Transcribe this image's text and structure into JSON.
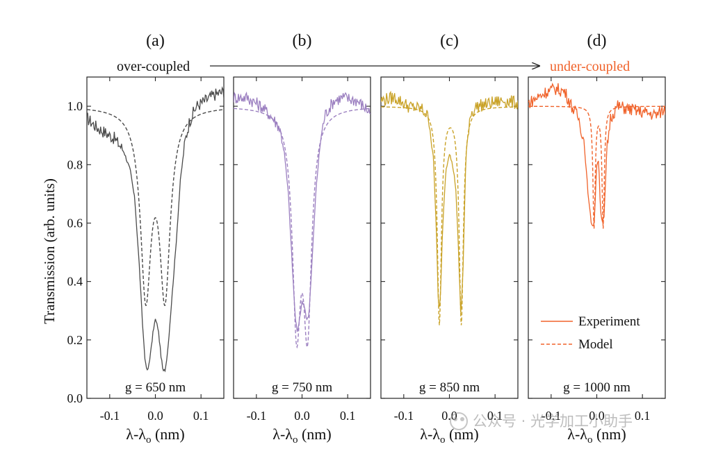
{
  "figure": {
    "ylabel": "Transmission (arb. units)",
    "xlabel_main": "λ-λ",
    "xlabel_sub": "o",
    "xlabel_unit": " (nm)",
    "arrow_left_label": "over-coupled",
    "arrow_right_label": "under-coupled",
    "legend": [
      {
        "label": "Experiment",
        "style": "solid"
      },
      {
        "label": "Model",
        "style": "dashed"
      }
    ],
    "watermark": "公众号 · 光学加工小助手",
    "arrow_color": "#222222",
    "highlight_color": "#f0622a"
  },
  "chart_data": [
    {
      "type": "line",
      "panel_label": "(a)",
      "annotation": "g = 650 nm",
      "color": "#4a4a4a",
      "xlim": [
        -0.15,
        0.15
      ],
      "ylim": [
        0.0,
        1.1
      ],
      "xticks": [
        -0.1,
        0.0,
        0.1
      ],
      "xticklabels": [
        "-0.1",
        "0.0",
        "0.1"
      ],
      "yticks": [
        0.0,
        0.2,
        0.4,
        0.6,
        0.8,
        1.0
      ],
      "yticklabels": [
        "0.0",
        "0.2",
        "0.4",
        "0.6",
        "0.8",
        "1.0"
      ],
      "model": {
        "base": 1.0,
        "dips": [
          {
            "x0": -0.021,
            "gamma": 0.028,
            "depth": 0.62
          },
          {
            "x0": 0.021,
            "gamma": 0.028,
            "depth": 0.62
          }
        ]
      },
      "series": [
        {
          "name": "Experiment",
          "dash": "solid",
          "x": [
            -0.15,
            -0.13,
            -0.11,
            -0.09,
            -0.07,
            -0.055,
            -0.045,
            -0.035,
            -0.028,
            -0.022,
            -0.017,
            -0.01,
            -0.004,
            0.0,
            0.006,
            0.012,
            0.017,
            0.022,
            0.028,
            0.035,
            0.045,
            0.055,
            0.065,
            0.075,
            0.09,
            0.11,
            0.13,
            0.15
          ],
          "y": [
            0.96,
            0.93,
            0.91,
            0.89,
            0.85,
            0.78,
            0.68,
            0.45,
            0.25,
            0.12,
            0.09,
            0.16,
            0.24,
            0.27,
            0.24,
            0.15,
            0.09,
            0.1,
            0.18,
            0.32,
            0.52,
            0.75,
            0.88,
            0.95,
            1.0,
            1.02,
            1.04,
            1.05
          ]
        },
        {
          "name": "Model",
          "dash": "dashed"
        }
      ]
    },
    {
      "type": "line",
      "panel_label": "(b)",
      "annotation": "g = 750 nm",
      "color": "#9b7fc0",
      "xlim": [
        -0.15,
        0.15
      ],
      "ylim": [
        0.0,
        1.1
      ],
      "xticks": [
        -0.1,
        0.0,
        0.1
      ],
      "xticklabels": [
        "-0.1",
        "0.0",
        "0.1"
      ],
      "yticks": [
        0.0,
        0.2,
        0.4,
        0.6,
        0.8,
        1.0
      ],
      "model": {
        "base": 1.0,
        "dips": [
          {
            "x0": -0.012,
            "gamma": 0.022,
            "depth": 0.7
          },
          {
            "x0": 0.012,
            "gamma": 0.022,
            "depth": 0.7
          }
        ]
      },
      "series": [
        {
          "name": "Experiment",
          "dash": "solid",
          "x": [
            -0.15,
            -0.12,
            -0.09,
            -0.07,
            -0.05,
            -0.04,
            -0.03,
            -0.022,
            -0.015,
            -0.01,
            -0.005,
            0.0,
            0.005,
            0.01,
            0.015,
            0.022,
            0.03,
            0.04,
            0.05,
            0.07,
            0.09,
            0.12,
            0.15
          ],
          "y": [
            1.03,
            1.03,
            1.0,
            0.97,
            0.93,
            0.86,
            0.7,
            0.47,
            0.28,
            0.22,
            0.28,
            0.33,
            0.32,
            0.27,
            0.28,
            0.47,
            0.7,
            0.88,
            0.97,
            1.02,
            1.03,
            1.02,
            0.98
          ]
        },
        {
          "name": "Model",
          "dash": "dashed"
        }
      ]
    },
    {
      "type": "line",
      "panel_label": "(c)",
      "annotation": "g = 850 nm",
      "color": "#c9a227",
      "xlim": [
        -0.15,
        0.15
      ],
      "ylim": [
        0.0,
        1.1
      ],
      "xticks": [
        -0.1,
        0.0,
        0.1
      ],
      "xticklabels": [
        "-0.1",
        "0.0",
        "0.1"
      ],
      "yticks": [
        0.0,
        0.2,
        0.4,
        0.6,
        0.8,
        1.0
      ],
      "model": {
        "base": 1.0,
        "dips": [
          {
            "x0": -0.022,
            "gamma": 0.011,
            "depth": 0.74
          },
          {
            "x0": 0.026,
            "gamma": 0.011,
            "depth": 0.74
          }
        ]
      },
      "series": [
        {
          "name": "Experiment",
          "dash": "solid",
          "x": [
            -0.15,
            -0.12,
            -0.09,
            -0.06,
            -0.045,
            -0.035,
            -0.028,
            -0.024,
            -0.02,
            -0.015,
            -0.008,
            0.0,
            0.008,
            0.014,
            0.02,
            0.025,
            0.03,
            0.036,
            0.045,
            0.06,
            0.09,
            0.12,
            0.15
          ],
          "y": [
            1.02,
            1.03,
            1.0,
            0.99,
            0.96,
            0.82,
            0.55,
            0.3,
            0.33,
            0.58,
            0.78,
            0.84,
            0.79,
            0.72,
            0.5,
            0.28,
            0.45,
            0.82,
            0.97,
            1.0,
            1.01,
            1.02,
            1.01
          ]
        },
        {
          "name": "Model",
          "dash": "dashed"
        }
      ]
    },
    {
      "type": "line",
      "panel_label": "(d)",
      "annotation": "g = 1000 nm",
      "color": "#f0622a",
      "xlim": [
        -0.15,
        0.15
      ],
      "ylim": [
        0.0,
        1.1
      ],
      "xticks": [
        -0.1,
        0.0,
        0.1
      ],
      "xticklabels": [
        "-0.1",
        "0.0",
        "0.1"
      ],
      "yticks": [
        0.0,
        0.2,
        0.4,
        0.6,
        0.8,
        1.0
      ],
      "model": {
        "base": 1.0,
        "dips": [
          {
            "x0": -0.006,
            "gamma": 0.006,
            "depth": 0.41
          },
          {
            "x0": 0.014,
            "gamma": 0.006,
            "depth": 0.41
          }
        ]
      },
      "series": [
        {
          "name": "Experiment",
          "dash": "solid",
          "x": [
            -0.15,
            -0.13,
            -0.11,
            -0.09,
            -0.07,
            -0.055,
            -0.04,
            -0.028,
            -0.018,
            -0.012,
            -0.006,
            0.0,
            0.004,
            0.008,
            0.012,
            0.016,
            0.022,
            0.03,
            0.045,
            0.07,
            0.1,
            0.13,
            0.15
          ],
          "y": [
            1.01,
            1.03,
            1.05,
            1.06,
            1.05,
            1.0,
            0.96,
            0.88,
            0.68,
            0.6,
            0.59,
            0.8,
            0.82,
            0.65,
            0.6,
            0.62,
            0.85,
            0.96,
            1.0,
            0.99,
            0.98,
            0.97,
            0.99
          ]
        },
        {
          "name": "Model",
          "dash": "dashed"
        }
      ]
    }
  ]
}
